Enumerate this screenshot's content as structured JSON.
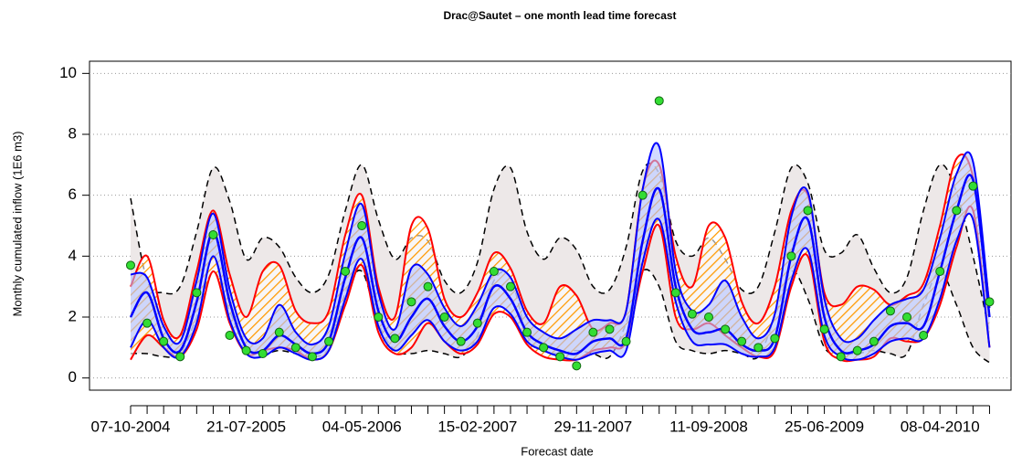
{
  "chart_data": {
    "type": "line",
    "title": "Drac@Sautet – one month lead time forecast",
    "x_label": "Forecast date",
    "y_label": "Monthly cumulated inflow (1E6 m3)",
    "categories": [
      "07-10-2004",
      null,
      null,
      null,
      null,
      null,
      null,
      "21-07-2005",
      null,
      null,
      null,
      null,
      null,
      null,
      "04-05-2006",
      null,
      null,
      null,
      null,
      null,
      null,
      "15-02-2007",
      null,
      null,
      null,
      null,
      null,
      null,
      "29-11-2007",
      null,
      null,
      null,
      null,
      null,
      null,
      "11-09-2008",
      null,
      null,
      null,
      null,
      null,
      null,
      "25-06-2009",
      null,
      null,
      null,
      null,
      null,
      null,
      "08-04-2010",
      null,
      null,
      null
    ],
    "ylim": [
      -0.4,
      10.4
    ],
    "yticks": [
      0,
      2,
      4,
      6,
      8,
      10
    ],
    "grid": true,
    "bands": [
      {
        "color": "#ede8e8",
        "line_color": "#000000",
        "style": "dashed",
        "upper": [
          5.9,
          3.2,
          2.8,
          3.0,
          4.8,
          6.9,
          5.8,
          3.9,
          4.6,
          4.3,
          3.3,
          2.8,
          3.4,
          5.5,
          7.0,
          5.2,
          3.9,
          4.6,
          4.5,
          3.2,
          2.8,
          3.8,
          6.2,
          6.9,
          4.8,
          3.9,
          4.6,
          4.2,
          3.0,
          2.9,
          4.3,
          6.8,
          6.7,
          4.5,
          4.0,
          4.6,
          3.9,
          2.9,
          3.0,
          4.8,
          6.9,
          6.4,
          4.2,
          4.1,
          4.7,
          3.6,
          2.8,
          3.3,
          5.5,
          7.0,
          6.1,
          4.0,
          1.5
        ],
        "lower": [
          0.8,
          0.8,
          0.7,
          0.8,
          2.0,
          3.5,
          2.2,
          1.0,
          0.8,
          0.9,
          0.8,
          0.7,
          1.0,
          2.8,
          3.5,
          1.8,
          0.9,
          0.8,
          0.9,
          0.8,
          0.7,
          1.4,
          3.2,
          3.3,
          1.4,
          0.9,
          0.8,
          0.9,
          0.8,
          0.7,
          1.8,
          3.5,
          3.0,
          1.2,
          0.9,
          0.8,
          0.9,
          0.8,
          0.7,
          2.0,
          3.5,
          2.6,
          1.0,
          0.8,
          0.8,
          0.9,
          0.8,
          0.8,
          2.4,
          3.5,
          2.4,
          1.0,
          0.5
        ]
      },
      {
        "color": "#ff9900",
        "line_color": "#ff0000",
        "style": "hatched",
        "upper": [
          3.0,
          4.0,
          1.9,
          1.4,
          3.5,
          5.5,
          3.4,
          2.0,
          3.5,
          3.7,
          2.2,
          1.8,
          2.2,
          4.7,
          6.0,
          3.0,
          2.0,
          5.0,
          4.9,
          2.6,
          2.0,
          2.8,
          4.1,
          3.6,
          2.2,
          1.8,
          3.0,
          2.7,
          1.6,
          1.8,
          2.2,
          6.2,
          7.0,
          4.0,
          3.0,
          5.0,
          4.6,
          2.5,
          1.8,
          3.0,
          5.5,
          6.0,
          2.8,
          2.4,
          3.0,
          2.9,
          2.4,
          2.7,
          3.1,
          5.0,
          7.2,
          6.6,
          2.4
        ],
        "lower": [
          0.6,
          1.4,
          1.0,
          0.7,
          1.6,
          3.5,
          1.8,
          0.8,
          0.9,
          1.0,
          0.9,
          0.6,
          0.9,
          2.4,
          3.7,
          1.5,
          0.8,
          1.0,
          1.8,
          1.2,
          0.8,
          1.1,
          2.1,
          2.0,
          1.1,
          0.7,
          0.6,
          0.6,
          0.9,
          1.0,
          1.2,
          3.5,
          5.0,
          2.0,
          1.6,
          1.8,
          1.4,
          1.0,
          0.7,
          0.9,
          3.0,
          4.0,
          1.2,
          0.6,
          0.6,
          0.7,
          1.3,
          1.2,
          1.3,
          2.4,
          4.3,
          5.5,
          1.0
        ]
      },
      {
        "color": "#b3c2ff",
        "line_color": "#0000ff",
        "style": "solid",
        "upper": [
          3.4,
          3.3,
          1.7,
          1.2,
          3.2,
          5.4,
          2.9,
          1.3,
          1.3,
          2.4,
          1.5,
          1.1,
          1.7,
          4.1,
          5.7,
          2.8,
          1.6,
          3.6,
          3.4,
          2.3,
          1.7,
          2.4,
          3.5,
          3.3,
          2.0,
          1.5,
          1.3,
          1.6,
          1.9,
          1.9,
          2.2,
          6.2,
          7.6,
          3.5,
          2.2,
          2.4,
          3.2,
          2.0,
          1.3,
          2.1,
          5.3,
          6.1,
          2.6,
          1.3,
          1.3,
          1.9,
          2.4,
          2.6,
          2.9,
          4.6,
          6.7,
          7.1,
          2.3
        ],
        "lower": [
          1.0,
          1.9,
          1.0,
          0.7,
          1.8,
          4.0,
          1.9,
          0.8,
          0.7,
          1.0,
          0.8,
          0.6,
          0.9,
          2.6,
          3.9,
          1.7,
          0.9,
          1.4,
          1.9,
          1.2,
          0.9,
          1.2,
          2.3,
          2.1,
          1.2,
          0.9,
          0.7,
          0.6,
          0.8,
          0.9,
          0.9,
          3.8,
          5.2,
          2.5,
          1.2,
          1.1,
          1.1,
          0.8,
          0.7,
          1.0,
          3.2,
          4.2,
          1.4,
          0.7,
          0.6,
          0.8,
          1.2,
          1.3,
          1.3,
          2.6,
          4.5,
          5.2,
          1.0
        ]
      }
    ],
    "series": [
      {
        "color": "#0000ff",
        "style": "line",
        "values": [
          2.0,
          2.8,
          1.3,
          0.9,
          2.5,
          4.8,
          2.5,
          1.0,
          0.9,
          1.4,
          1.1,
          0.8,
          1.2,
          3.3,
          4.6,
          2.2,
          1.2,
          2.0,
          2.6,
          1.7,
          1.2,
          1.7,
          3.0,
          2.6,
          1.5,
          1.1,
          0.9,
          0.8,
          1.2,
          1.3,
          1.3,
          4.5,
          6.2,
          3.0,
          1.6,
          1.5,
          1.6,
          1.1,
          0.9,
          1.3,
          4.0,
          5.2,
          2.0,
          0.9,
          0.9,
          1.1,
          1.7,
          1.8,
          1.7,
          3.5,
          5.5,
          6.5,
          2.0
        ]
      },
      {
        "color": "#33dd33",
        "style": "points",
        "values": [
          3.7,
          1.8,
          1.2,
          0.7,
          2.8,
          4.7,
          1.4,
          0.9,
          0.8,
          1.5,
          1.0,
          0.7,
          1.2,
          3.5,
          5.0,
          2.0,
          1.3,
          2.5,
          3.0,
          2.0,
          1.2,
          1.8,
          3.5,
          3.0,
          1.5,
          1.0,
          0.7,
          0.4,
          1.5,
          1.6,
          1.2,
          6.0,
          9.1,
          2.8,
          2.1,
          2.0,
          1.6,
          1.2,
          1.0,
          1.3,
          4.0,
          5.5,
          1.6,
          0.7,
          0.9,
          1.2,
          2.2,
          2.0,
          1.4,
          3.5,
          5.5,
          6.3,
          2.5
        ]
      }
    ]
  }
}
